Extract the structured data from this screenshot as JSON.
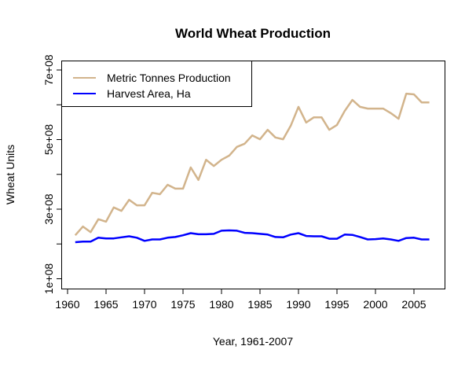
{
  "chart_data": {
    "type": "line",
    "title": "World Wheat Production",
    "xlabel": "Year, 1961-2007",
    "ylabel": "Wheat Units",
    "xlim": [
      1960,
      2008
    ],
    "ylim": [
      70000000,
      730000000
    ],
    "x_ticks": [
      1960,
      1965,
      1970,
      1975,
      1980,
      1985,
      1990,
      1995,
      2000,
      2005
    ],
    "x_tick_labels": [
      "1960",
      "1965",
      "1970",
      "1975",
      "1980",
      "1985",
      "1990",
      "1995",
      "2000",
      "2005"
    ],
    "y_ticks": [
      100000000,
      200000000,
      300000000,
      400000000,
      500000000,
      600000000,
      700000000
    ],
    "y_tick_labels": [
      "1e+08",
      "",
      "3e+08",
      "",
      "5e+08",
      "",
      "7e+08"
    ],
    "grid": false,
    "legend_position": "top-left",
    "x": [
      1961,
      1962,
      1963,
      1964,
      1965,
      1966,
      1967,
      1968,
      1969,
      1970,
      1971,
      1972,
      1973,
      1974,
      1975,
      1976,
      1977,
      1978,
      1979,
      1980,
      1981,
      1982,
      1983,
      1984,
      1985,
      1986,
      1987,
      1988,
      1989,
      1990,
      1991,
      1992,
      1993,
      1994,
      1995,
      1996,
      1997,
      1998,
      1999,
      2000,
      2001,
      2002,
      2003,
      2004,
      2005,
      2006,
      2007
    ],
    "series": [
      {
        "name": "Metric Tonnes Production",
        "color": "#d2b48c",
        "values": [
          225000000,
          250000000,
          234000000,
          271000000,
          264000000,
          305000000,
          295000000,
          327000000,
          311000000,
          311000000,
          347000000,
          343000000,
          370000000,
          359000000,
          359000000,
          420000000,
          384000000,
          442000000,
          424000000,
          442000000,
          454000000,
          479000000,
          488000000,
          512000000,
          501000000,
          528000000,
          506000000,
          501000000,
          540000000,
          594000000,
          549000000,
          564000000,
          564000000,
          528000000,
          542000000,
          582000000,
          614000000,
          594000000,
          589000000,
          589000000,
          589000000,
          576000000,
          560000000,
          632000000,
          630000000,
          607000000,
          607000000
        ]
      },
      {
        "name": "Harvest Area, Ha",
        "color": "#0000ff",
        "values": [
          205000000,
          207000000,
          207000000,
          218000000,
          216000000,
          216000000,
          219000000,
          222000000,
          218000000,
          209000000,
          213000000,
          213000000,
          218000000,
          220000000,
          225000000,
          231000000,
          228000000,
          228000000,
          229000000,
          238000000,
          239000000,
          238000000,
          232000000,
          231000000,
          229000000,
          227000000,
          220000000,
          219000000,
          227000000,
          231000000,
          223000000,
          222000000,
          222000000,
          215000000,
          215000000,
          227000000,
          226000000,
          220000000,
          213000000,
          214000000,
          216000000,
          213000000,
          209000000,
          217000000,
          218000000,
          213000000,
          213000000
        ]
      }
    ]
  }
}
